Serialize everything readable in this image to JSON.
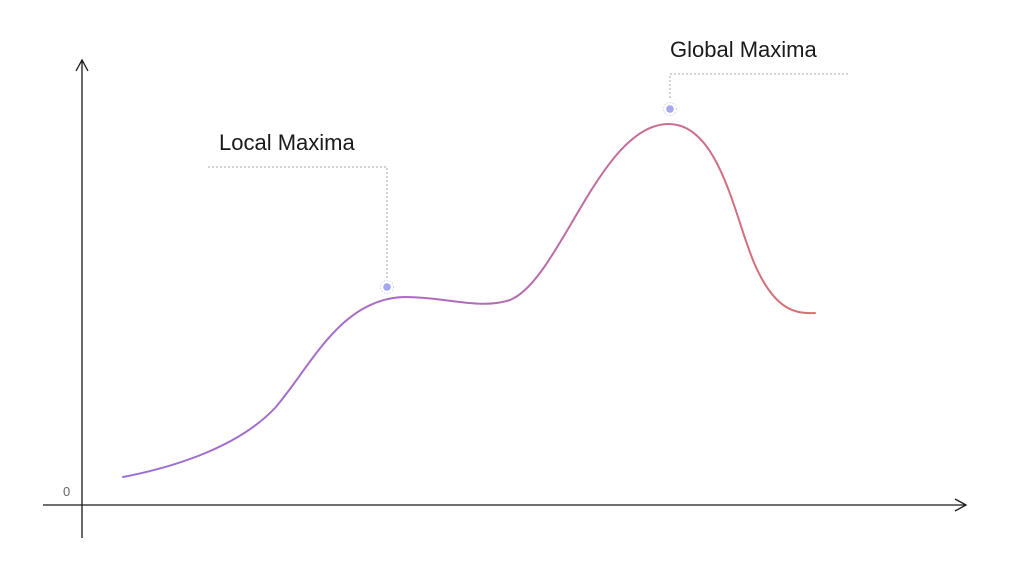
{
  "diagram": {
    "origin_label": "0",
    "annotations": {
      "local_maxima": "Local Maxima",
      "global_maxima": "Global Maxima"
    },
    "curve_gradient": {
      "start": "#9a6fd6",
      "end": "#d9706f"
    },
    "marker_color": "#a4a6f2",
    "leader_color": "#aaaaaa",
    "axis_color": "#1a1a1a"
  }
}
